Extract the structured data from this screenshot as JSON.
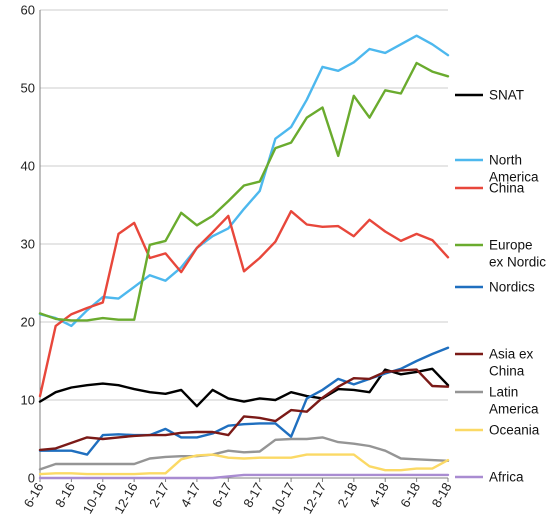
{
  "chart_data": {
    "type": "line",
    "x_ticks": [
      "6-16",
      "8-16",
      "10-16",
      "12-16",
      "2-17",
      "4-17",
      "6-17",
      "8-17",
      "10-17",
      "12-17",
      "2-18",
      "4-18",
      "6-18",
      "8-18"
    ],
    "n_points": 27,
    "ylim": [
      0,
      60
    ],
    "y_ticks": [
      0,
      10,
      20,
      30,
      40,
      50,
      60
    ],
    "grid": "horizontal",
    "legend_position": "right",
    "series": [
      {
        "name": "SNAT",
        "color": "#000000",
        "values": [
          9.8,
          11,
          11.6,
          11.9,
          12.1,
          11.9,
          11.4,
          11,
          10.8,
          11.3,
          9.2,
          11.3,
          10.2,
          9.8,
          10.2,
          10,
          11,
          10.5,
          10.2,
          11.4,
          11.3,
          11,
          13.9,
          13.3,
          13.6,
          14,
          11.9
        ]
      },
      {
        "name": "North\nAmerica",
        "color": "#4db8ee",
        "values": [
          21,
          20.5,
          19.5,
          21.5,
          23.2,
          23,
          24.5,
          26,
          25.3,
          27,
          29.5,
          31,
          32,
          34.5,
          36.8,
          43.5,
          45,
          48.5,
          52.7,
          52.2,
          53.3,
          55,
          54.5,
          55.6,
          56.7,
          55.6,
          54.2
        ]
      },
      {
        "name": "China",
        "color": "#e8473b",
        "values": [
          10.5,
          19.5,
          21,
          21.8,
          22.5,
          31.3,
          32.7,
          28.2,
          28.8,
          26.4,
          29.5,
          31.5,
          33.6,
          26.5,
          28.2,
          30.3,
          34.2,
          32.5,
          32.2,
          32.3,
          31,
          33.1,
          31.6,
          30.4,
          31.3,
          30.5,
          28.3
        ]
      },
      {
        "name": "Europe\nex Nordic",
        "color": "#6aab2e",
        "values": [
          21.1,
          20.4,
          20.2,
          20.2,
          20.5,
          20.3,
          20.3,
          29.9,
          30.4,
          34,
          32.4,
          33.6,
          35.5,
          37.5,
          38,
          42.3,
          43,
          46.2,
          47.5,
          41.3,
          49,
          46.2,
          49.7,
          49.3,
          53.2,
          52.1,
          51.5
        ]
      },
      {
        "name": "Nordics",
        "color": "#1f6fbf",
        "values": [
          3.5,
          3.5,
          3.5,
          3,
          5.5,
          5.6,
          5.5,
          5.5,
          6.3,
          5.2,
          5.2,
          5.7,
          6.7,
          6.9,
          7,
          7,
          5.3,
          10.2,
          11.3,
          12.7,
          12,
          12.7,
          13.4,
          14,
          15,
          15.9,
          16.7
        ]
      },
      {
        "name": "Asia ex\nChina",
        "color": "#7b1a17",
        "values": [
          3.6,
          3.8,
          4.5,
          5.2,
          5,
          5.2,
          5.4,
          5.5,
          5.5,
          5.8,
          5.9,
          5.9,
          5.5,
          7.9,
          7.7,
          7.3,
          8.7,
          8.5,
          10.3,
          11.7,
          12.8,
          12.7,
          13.6,
          13.8,
          13.9,
          11.8,
          11.7
        ]
      },
      {
        "name": "Latin\nAmerica",
        "color": "#959595",
        "values": [
          1.1,
          1.8,
          1.8,
          1.8,
          1.8,
          1.8,
          1.8,
          2.5,
          2.7,
          2.8,
          2.8,
          3,
          3.5,
          3.3,
          3.4,
          4.9,
          5,
          5,
          5.2,
          4.6,
          4.4,
          4.1,
          3.5,
          2.5,
          2.4,
          2.3,
          2.2
        ]
      },
      {
        "name": "Oceania",
        "color": "#fbd965",
        "values": [
          0.5,
          0.6,
          0.6,
          0.5,
          0.5,
          0.5,
          0.5,
          0.6,
          0.6,
          2.4,
          2.9,
          3,
          2.6,
          2.5,
          2.6,
          2.6,
          2.6,
          3,
          3,
          3,
          3,
          1.5,
          1,
          1,
          1.2,
          1.2,
          2.3
        ]
      },
      {
        "name": "Africa",
        "color": "#a98cd1",
        "values": [
          0,
          0,
          0,
          0,
          0,
          0,
          0,
          0,
          0,
          0,
          0,
          0,
          0.2,
          0.4,
          0.4,
          0.4,
          0.4,
          0.4,
          0.4,
          0.4,
          0.4,
          0.4,
          0.4,
          0.4,
          0.4,
          0.4,
          0.4
        ]
      }
    ]
  }
}
